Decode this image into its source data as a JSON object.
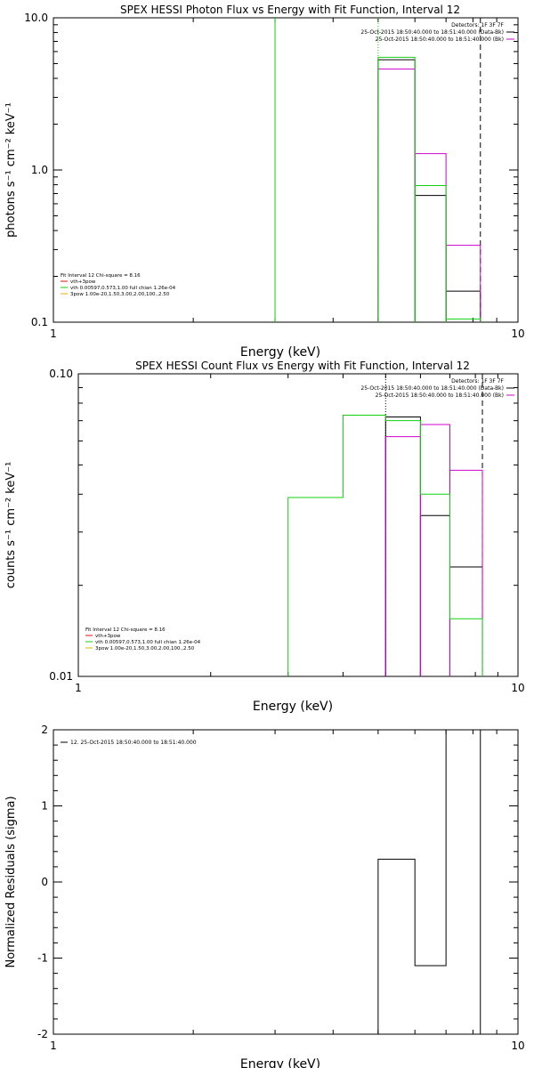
{
  "chart_data": [
    {
      "type": "line",
      "title": "SPEX HESSI Photon Flux vs Energy with Fit Function, Interval 12",
      "xlabel": "Energy (keV)",
      "ylabel": "photons s⁻¹ cm⁻² keV⁻¹",
      "xscale": "log",
      "yscale": "log",
      "xlim": [
        1,
        10
      ],
      "ylim": [
        0.1,
        10
      ],
      "x_tick_labels": [
        "1",
        "10"
      ],
      "y_tick_labels": [
        "0.1",
        "1.0",
        "10.0"
      ],
      "header_lines": [
        {
          "text": "Detectors: 1F 3F 7F",
          "color": "#000000"
        },
        {
          "text": "25-Oct-2015 18:50:40.000 to 18:51:40.000 (Data-Bk)",
          "color": "#000000"
        },
        {
          "text": "25-Oct-2015 18:50:40.000 to 18:51:40.000 (Bk)",
          "color": "#d000d0"
        }
      ],
      "legend_lines": [
        {
          "text": "Fit Interval 12   Chi-square = 8.16",
          "color": "#000000"
        },
        {
          "text": "vth+3pow",
          "color": "#e01010"
        },
        {
          "text": "vth 0.00597,0.573,1.00  full chian 1.26e-04",
          "color": "#10d010"
        },
        {
          "text": "3pow 1.00e-20,1.50,3.00,2.00,100.,2.50",
          "color": "#e0b000"
        }
      ],
      "series": [
        {
          "color": "#000000",
          "segments": [
            {
              "x": [
                5.0,
                6.0
              ],
              "y": 5.3
            },
            {
              "x": [
                6.0,
                7.0
              ],
              "y": 0.68
            },
            {
              "x": [
                7.0,
                8.3
              ],
              "y": 0.16
            }
          ]
        },
        {
          "color": "#d000d0",
          "segments": [
            {
              "x": [
                5.0,
                6.0
              ],
              "y": 4.6
            },
            {
              "x": [
                6.0,
                7.0
              ],
              "y": 1.28
            },
            {
              "x": [
                7.0,
                8.3
              ],
              "y": 0.32
            }
          ]
        },
        {
          "color": "#10d010",
          "segments": [
            {
              "x": [
                5.0,
                6.0
              ],
              "y": 5.5
            },
            {
              "x": [
                6.0,
                7.0
              ],
              "y": 0.79
            },
            {
              "x": [
                7.0,
                8.3
              ],
              "y": 0.105
            }
          ]
        }
      ],
      "vlines": [
        {
          "x": 3.0,
          "color": "#10d010",
          "style": "solid"
        },
        {
          "x": 5.0,
          "color": "#10d010",
          "style": "dotted"
        },
        {
          "x": 8.3,
          "color": "#000000",
          "style": "dashed"
        }
      ]
    },
    {
      "type": "line",
      "title": "SPEX HESSI Count Flux vs Energy with Fit Function, Interval 12",
      "xlabel": "Energy (keV)",
      "ylabel": "counts s⁻¹ cm⁻² keV⁻¹",
      "xscale": "log",
      "yscale": "log",
      "xlim": [
        1,
        10
      ],
      "ylim": [
        0.01,
        0.1
      ],
      "x_tick_labels": [
        "1",
        "10"
      ],
      "y_tick_labels": [
        "0.01",
        "0.10"
      ],
      "header_lines": [
        {
          "text": "Detectors: 1F 3F 7F",
          "color": "#000000"
        },
        {
          "text": "25-Oct-2015 18:50:40.000 to 18:51:40.000 (Data-Bk)",
          "color": "#000000"
        },
        {
          "text": "25-Oct-2015 18:50:40.000 to 18:51:40.000 (Bk)",
          "color": "#d000d0"
        }
      ],
      "legend_lines": [
        {
          "text": "Fit Interval 12   Chi-square = 8.16",
          "color": "#000000"
        },
        {
          "text": "vth+3pow",
          "color": "#e01010"
        },
        {
          "text": "vth 0.00597,0.573,1.00  full chian 1.26e-04",
          "color": "#10d010"
        },
        {
          "text": "3pow 1.00e-20,1.50,3.00,2.00,100.,2.50",
          "color": "#e0b000"
        }
      ],
      "series": [
        {
          "color": "#000000",
          "segments": [
            {
              "x": [
                5.0,
                6.0
              ],
              "y": 0.072
            },
            {
              "x": [
                6.0,
                7.0
              ],
              "y": 0.034
            },
            {
              "x": [
                7.0,
                8.3
              ],
              "y": 0.023
            }
          ]
        },
        {
          "color": "#d000d0",
          "segments": [
            {
              "x": [
                5.0,
                6.0
              ],
              "y": 0.062
            },
            {
              "x": [
                6.0,
                7.0
              ],
              "y": 0.068
            },
            {
              "x": [
                7.0,
                8.3
              ],
              "y": 0.048
            }
          ]
        },
        {
          "color": "#10d010",
          "steps": [
            {
              "x": [
                3.0,
                4.0
              ],
              "y": 0.039
            },
            {
              "x": [
                4.0,
                5.0
              ],
              "y": 0.073
            },
            {
              "x": [
                5.0,
                6.0
              ],
              "y": 0.07
            },
            {
              "x": [
                6.0,
                7.0
              ],
              "y": 0.04
            },
            {
              "x": [
                7.0,
                8.3
              ],
              "y": 0.0155
            }
          ]
        }
      ],
      "vlines": [
        {
          "x": 5.0,
          "color": "#000000",
          "style": "dotted"
        },
        {
          "x": 5.0,
          "color": "#d000d0",
          "style": "solid",
          "ymax": 0.062
        },
        {
          "x": 8.3,
          "color": "#000000",
          "style": "dashed"
        }
      ]
    },
    {
      "type": "line",
      "title": "",
      "xlabel": "Energy (keV)",
      "ylabel": "Normalized Residuals (sigma)",
      "xscale": "log",
      "yscale": "linear",
      "xlim": [
        1,
        10
      ],
      "ylim": [
        -2,
        2
      ],
      "x_tick_labels": [
        "1",
        "10"
      ],
      "y_tick_labels": [
        "-2",
        "-1",
        "0",
        "1",
        "2"
      ],
      "legend_lines": [
        {
          "text": "12. 25-Oct-2015 18:50:40.000 to 18:51:40.000",
          "color": "#000000"
        }
      ],
      "series": [
        {
          "color": "#000000",
          "steps": [
            {
              "x": [
                5.0,
                6.0
              ],
              "y": 0.3
            },
            {
              "x": [
                6.0,
                7.0
              ],
              "y": -1.1
            },
            {
              "x": [
                7.0,
                8.3
              ],
              "y": 2.0
            }
          ]
        }
      ]
    }
  ]
}
